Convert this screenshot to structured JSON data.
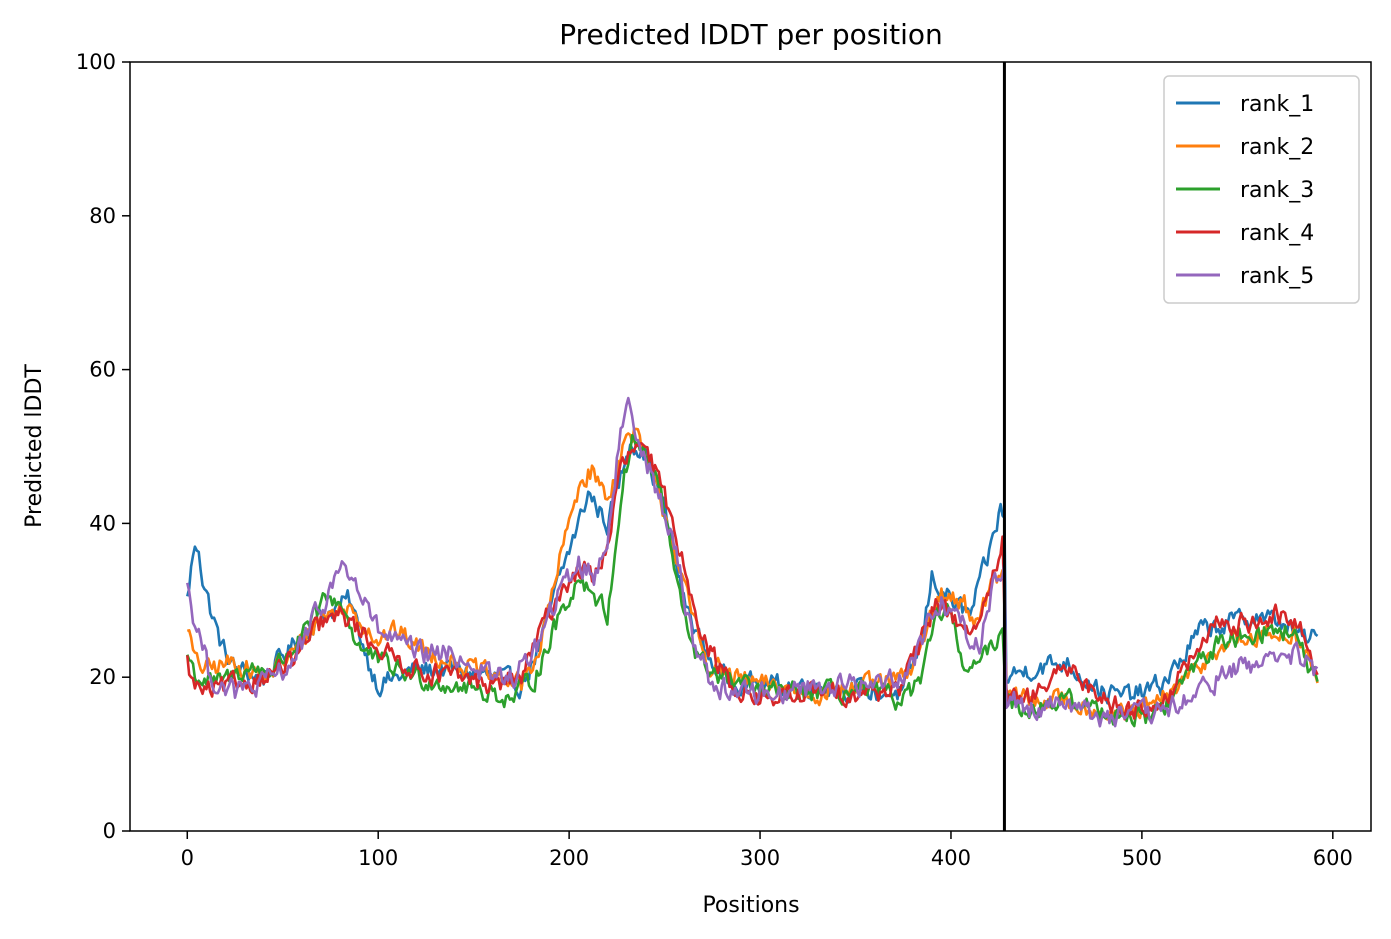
{
  "chart_data": {
    "type": "line",
    "title": "Predicted lDDT per position",
    "xlabel": "Positions",
    "ylabel": "Predicted lDDT",
    "xlim": [
      -30,
      620
    ],
    "ylim": [
      0,
      100
    ],
    "xticks": [
      0,
      100,
      200,
      300,
      400,
      500,
      600
    ],
    "yticks": [
      0,
      20,
      40,
      60,
      80,
      100
    ],
    "grid": false,
    "legend_position": "top-right",
    "vline_x": 428,
    "series_length": 593,
    "series": [
      {
        "name": "rank_1",
        "color": "#1f77b4",
        "anchors": [
          [
            0,
            30
          ],
          [
            3,
            36
          ],
          [
            6,
            37
          ],
          [
            8,
            33
          ],
          [
            12,
            29
          ],
          [
            18,
            24
          ],
          [
            25,
            21
          ],
          [
            40,
            20
          ],
          [
            55,
            24
          ],
          [
            70,
            28
          ],
          [
            85,
            30
          ],
          [
            95,
            22
          ],
          [
            100,
            19
          ],
          [
            110,
            20
          ],
          [
            120,
            21
          ],
          [
            140,
            21
          ],
          [
            160,
            20
          ],
          [
            175,
            19
          ],
          [
            185,
            24
          ],
          [
            195,
            33
          ],
          [
            205,
            40
          ],
          [
            210,
            44
          ],
          [
            215,
            42
          ],
          [
            220,
            40
          ],
          [
            225,
            44
          ],
          [
            232,
            51
          ],
          [
            240,
            49
          ],
          [
            250,
            42
          ],
          [
            260,
            30
          ],
          [
            270,
            24
          ],
          [
            280,
            20
          ],
          [
            300,
            19
          ],
          [
            330,
            19
          ],
          [
            360,
            18
          ],
          [
            375,
            18
          ],
          [
            385,
            25
          ],
          [
            390,
            33
          ],
          [
            400,
            30
          ],
          [
            410,
            28
          ],
          [
            420,
            36
          ],
          [
            426,
            42
          ],
          [
            428,
            40
          ],
          [
            429,
            20
          ],
          [
            440,
            21
          ],
          [
            460,
            22
          ],
          [
            470,
            20
          ],
          [
            480,
            18
          ],
          [
            490,
            17.5
          ],
          [
            500,
            18
          ],
          [
            510,
            19
          ],
          [
            520,
            22
          ],
          [
            530,
            26
          ],
          [
            545,
            27
          ],
          [
            560,
            28
          ],
          [
            575,
            27
          ],
          [
            585,
            25
          ],
          [
            593,
            25
          ]
        ],
        "noise": 1.6
      },
      {
        "name": "rank_2",
        "color": "#ff7f0e",
        "anchors": [
          [
            0,
            27
          ],
          [
            4,
            22
          ],
          [
            10,
            21
          ],
          [
            25,
            22
          ],
          [
            40,
            20
          ],
          [
            55,
            23
          ],
          [
            70,
            28
          ],
          [
            85,
            29
          ],
          [
            100,
            25
          ],
          [
            110,
            26
          ],
          [
            120,
            24
          ],
          [
            140,
            22
          ],
          [
            160,
            20
          ],
          [
            175,
            19
          ],
          [
            185,
            24
          ],
          [
            195,
            35
          ],
          [
            205,
            45
          ],
          [
            212,
            47
          ],
          [
            220,
            43
          ],
          [
            228,
            50
          ],
          [
            234,
            52
          ],
          [
            242,
            47
          ],
          [
            252,
            40
          ],
          [
            262,
            30
          ],
          [
            272,
            22
          ],
          [
            285,
            20
          ],
          [
            300,
            19
          ],
          [
            330,
            18
          ],
          [
            360,
            19
          ],
          [
            378,
            20
          ],
          [
            388,
            27
          ],
          [
            395,
            31
          ],
          [
            405,
            30
          ],
          [
            415,
            27
          ],
          [
            422,
            33
          ],
          [
            428,
            33
          ],
          [
            429,
            18
          ],
          [
            440,
            17
          ],
          [
            460,
            17
          ],
          [
            475,
            16
          ],
          [
            490,
            15
          ],
          [
            505,
            16
          ],
          [
            515,
            18
          ],
          [
            525,
            20
          ],
          [
            540,
            24
          ],
          [
            560,
            25
          ],
          [
            578,
            26
          ],
          [
            585,
            24
          ],
          [
            593,
            18
          ]
        ],
        "noise": 1.6
      },
      {
        "name": "rank_3",
        "color": "#2ca02c",
        "anchors": [
          [
            0,
            23
          ],
          [
            5,
            20
          ],
          [
            15,
            19
          ],
          [
            30,
            21
          ],
          [
            45,
            21
          ],
          [
            60,
            25
          ],
          [
            72,
            30
          ],
          [
            80,
            30
          ],
          [
            90,
            24
          ],
          [
            100,
            22
          ],
          [
            120,
            20
          ],
          [
            140,
            19
          ],
          [
            160,
            18
          ],
          [
            170,
            17
          ],
          [
            182,
            20
          ],
          [
            195,
            28
          ],
          [
            205,
            33
          ],
          [
            213,
            31
          ],
          [
            220,
            28
          ],
          [
            228,
            45
          ],
          [
            233,
            51
          ],
          [
            240,
            49
          ],
          [
            248,
            44
          ],
          [
            258,
            30
          ],
          [
            268,
            22
          ],
          [
            280,
            20
          ],
          [
            300,
            18
          ],
          [
            330,
            18
          ],
          [
            360,
            18
          ],
          [
            375,
            17
          ],
          [
            385,
            20
          ],
          [
            393,
            28
          ],
          [
            398,
            29
          ],
          [
            405,
            23
          ],
          [
            410,
            21
          ],
          [
            420,
            23
          ],
          [
            427,
            27
          ],
          [
            429,
            17
          ],
          [
            440,
            16
          ],
          [
            460,
            17
          ],
          [
            475,
            16
          ],
          [
            490,
            15
          ],
          [
            505,
            15
          ],
          [
            515,
            17
          ],
          [
            528,
            22
          ],
          [
            545,
            25
          ],
          [
            560,
            26
          ],
          [
            578,
            26
          ],
          [
            585,
            23
          ],
          [
            593,
            18
          ]
        ],
        "noise": 1.6
      },
      {
        "name": "rank_4",
        "color": "#d62728",
        "anchors": [
          [
            0,
            22
          ],
          [
            3,
            19
          ],
          [
            10,
            18
          ],
          [
            25,
            19
          ],
          [
            40,
            20
          ],
          [
            55,
            22
          ],
          [
            70,
            27
          ],
          [
            82,
            28
          ],
          [
            95,
            25
          ],
          [
            105,
            23
          ],
          [
            120,
            21
          ],
          [
            140,
            20
          ],
          [
            160,
            19
          ],
          [
            175,
            20
          ],
          [
            185,
            26
          ],
          [
            195,
            31
          ],
          [
            205,
            34
          ],
          [
            213,
            33
          ],
          [
            220,
            37
          ],
          [
            227,
            47
          ],
          [
            235,
            50
          ],
          [
            243,
            48
          ],
          [
            252,
            42
          ],
          [
            262,
            33
          ],
          [
            272,
            24
          ],
          [
            285,
            19
          ],
          [
            300,
            17
          ],
          [
            330,
            18
          ],
          [
            360,
            18
          ],
          [
            375,
            19
          ],
          [
            385,
            25
          ],
          [
            392,
            30
          ],
          [
            400,
            28
          ],
          [
            410,
            26
          ],
          [
            420,
            30
          ],
          [
            427,
            38
          ],
          [
            429,
            17
          ],
          [
            440,
            17
          ],
          [
            455,
            20
          ],
          [
            465,
            21
          ],
          [
            475,
            18
          ],
          [
            490,
            16
          ],
          [
            505,
            16
          ],
          [
            515,
            18
          ],
          [
            525,
            22
          ],
          [
            540,
            27
          ],
          [
            555,
            27
          ],
          [
            570,
            28
          ],
          [
            585,
            26
          ],
          [
            593,
            19
          ]
        ],
        "noise": 1.6
      },
      {
        "name": "rank_5",
        "color": "#9467bd",
        "anchors": [
          [
            0,
            33
          ],
          [
            2,
            29
          ],
          [
            6,
            26
          ],
          [
            12,
            20
          ],
          [
            25,
            18
          ],
          [
            40,
            19
          ],
          [
            55,
            22
          ],
          [
            70,
            29
          ],
          [
            82,
            35
          ],
          [
            90,
            31
          ],
          [
            100,
            26
          ],
          [
            120,
            23
          ],
          [
            140,
            23
          ],
          [
            160,
            20
          ],
          [
            172,
            20
          ],
          [
            185,
            25
          ],
          [
            195,
            31
          ],
          [
            205,
            35
          ],
          [
            213,
            33
          ],
          [
            220,
            38
          ],
          [
            226,
            50
          ],
          [
            231,
            56
          ],
          [
            237,
            51
          ],
          [
            245,
            45
          ],
          [
            255,
            37
          ],
          [
            265,
            25
          ],
          [
            275,
            19
          ],
          [
            290,
            18
          ],
          [
            310,
            18
          ],
          [
            330,
            19
          ],
          [
            360,
            19
          ],
          [
            378,
            21
          ],
          [
            388,
            27
          ],
          [
            395,
            30
          ],
          [
            405,
            27
          ],
          [
            415,
            24
          ],
          [
            422,
            32
          ],
          [
            428,
            35
          ],
          [
            429,
            17
          ],
          [
            440,
            16
          ],
          [
            460,
            17
          ],
          [
            475,
            15
          ],
          [
            490,
            15
          ],
          [
            505,
            15
          ],
          [
            515,
            16
          ],
          [
            525,
            17
          ],
          [
            540,
            20
          ],
          [
            560,
            22
          ],
          [
            578,
            23
          ],
          [
            585,
            22
          ],
          [
            593,
            20
          ]
        ],
        "noise": 1.8
      }
    ]
  }
}
